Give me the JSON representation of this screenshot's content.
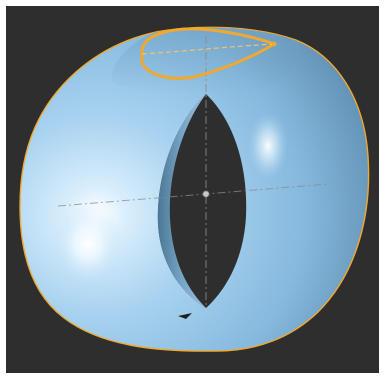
{
  "app": {
    "view": "3D viewport",
    "model": "torus-section-surface"
  },
  "colors": {
    "viewport_background": "#2e2e2e",
    "surface_base": "#8ec2e6",
    "surface_highlight": "#ffffff",
    "surface_shadow": "#5a8cae",
    "selection_edge": "#f0a830",
    "axis_line": "#8a8a8a"
  },
  "icons": {
    "pivot": "pivot-point-icon"
  }
}
